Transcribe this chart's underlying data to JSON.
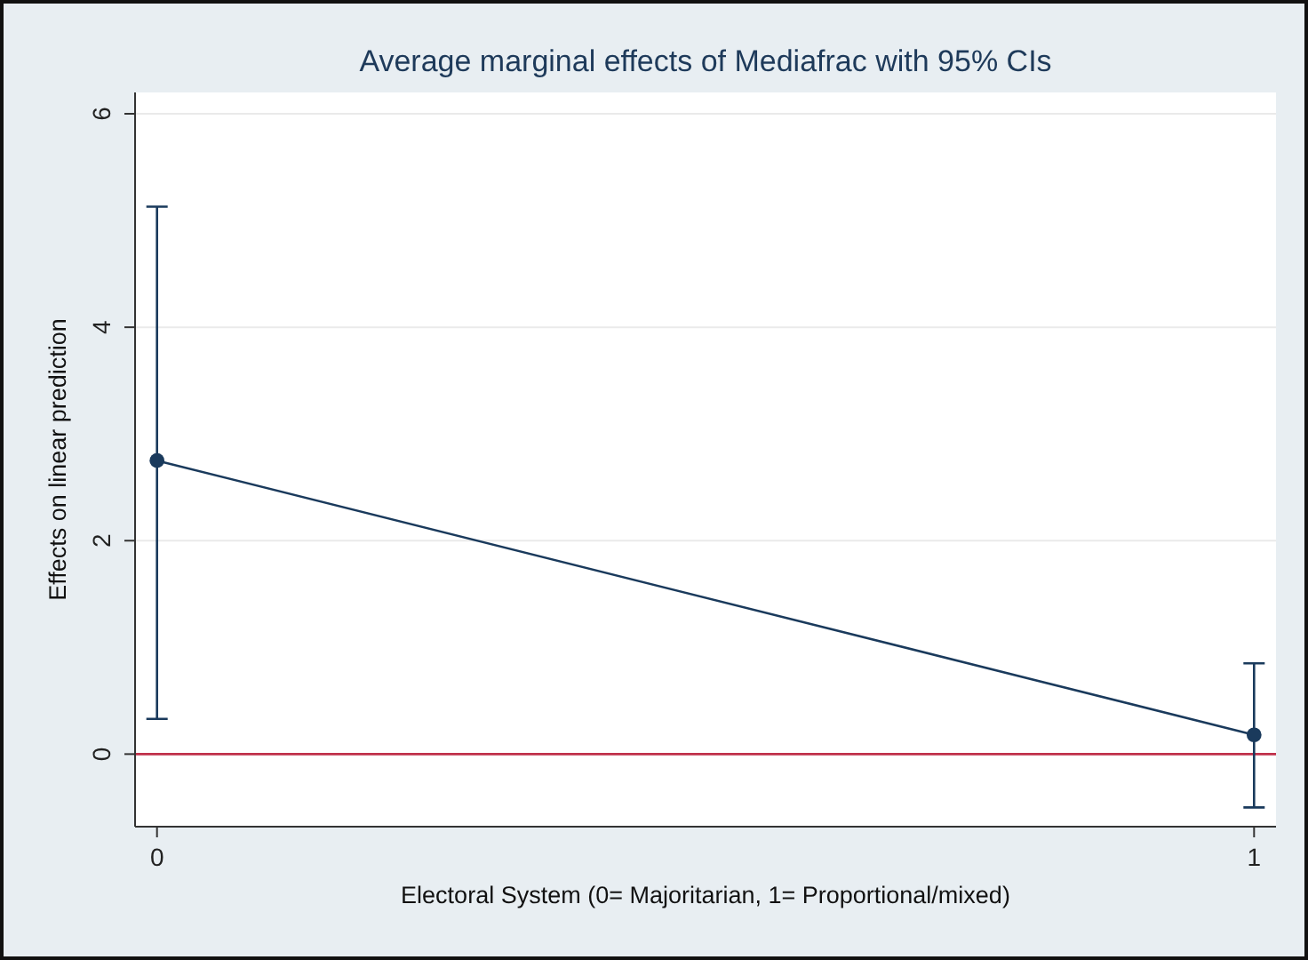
{
  "chart_data": {
    "type": "line",
    "title": "Average marginal effects of Mediafrac with 95% CIs",
    "xlabel": "Electoral System (0= Majoritarian, 1= Proportional/mixed)",
    "ylabel": "Effects on linear prediction",
    "x": [
      0,
      1
    ],
    "series": [
      {
        "color": "#1a3a5c",
        "values": [
          2.75,
          0.18
        ],
        "errors": [
          [
            0.33,
            5.13
          ],
          [
            -0.5,
            0.85
          ]
        ]
      }
    ],
    "xlim": [
      -0.02,
      1.02
    ],
    "xticks": [
      0,
      1
    ],
    "ylim": [
      -0.68,
      6.2
    ],
    "yticks": [
      0,
      2,
      4,
      6
    ],
    "ref_lines": [
      {
        "axis": "y",
        "value": 0,
        "color": "#c0304a"
      }
    ],
    "grid": "y",
    "marker": "circle",
    "line_style": "solid"
  }
}
